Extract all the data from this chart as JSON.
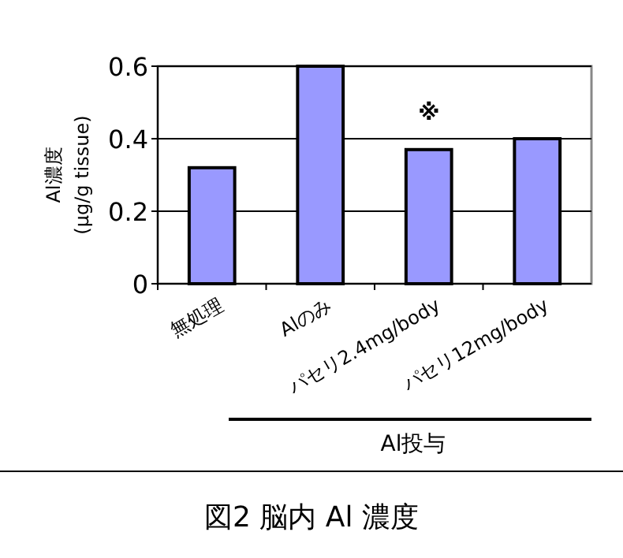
{
  "chart_data": {
    "type": "bar",
    "title": "図2 脳内 Al 濃度",
    "ylabel": "Al濃度\n(μg/g tissue)",
    "categories": [
      "無処理",
      "Alのみ",
      "パセリ2.4mg/body",
      "パセリ12mg/body"
    ],
    "values": [
      0.32,
      0.6,
      0.37,
      0.4
    ],
    "color": "#9999ff",
    "ylim": [
      0,
      0.6
    ],
    "yticks": [
      0,
      0.2,
      0.4,
      0.6
    ],
    "grid": "y",
    "annotations": [
      "※",
      "Al投与"
    ]
  }
}
